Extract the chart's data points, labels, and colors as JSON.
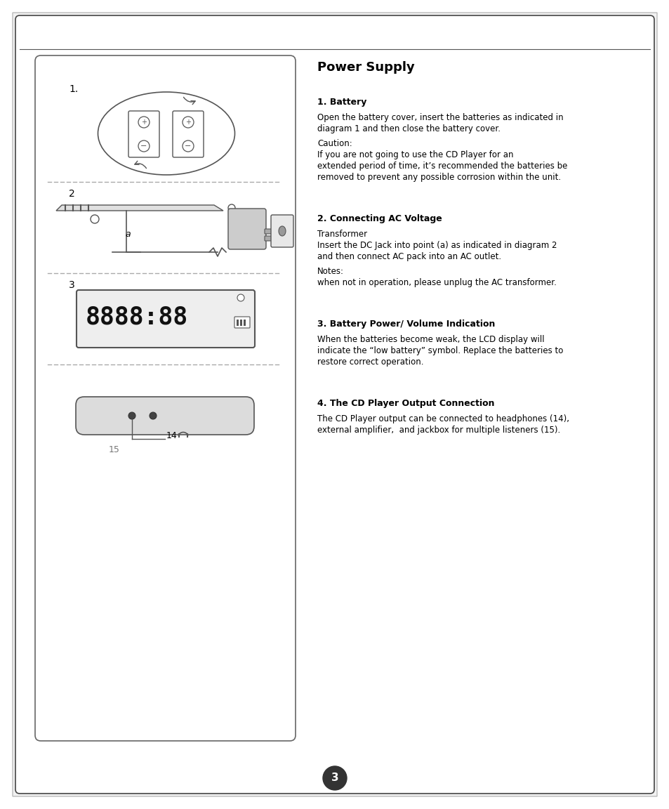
{
  "bg_color": "#ffffff",
  "title": "Power Supply",
  "sections": [
    {
      "heading": "1. Battery",
      "paragraphs": [
        "Open the battery cover, insert the batteries as indicated in\ndiagram 1 and then close the battery cover.",
        "Caution:\nIf you are not going to use the CD Player for an\nextended period of time, it’s recommended the batteries be\nremoved to prevent any possible corrosion within the unit."
      ]
    },
    {
      "heading": "2. Connecting AC Voltage",
      "paragraphs": [
        "Transformer\nInsert the DC Jack into point (a) as indicated in diagram 2\nand then connect AC pack into an AC outlet.",
        "Notes:\nwhen not in operation, please unplug the AC transformer."
      ]
    },
    {
      "heading": "3. Battery Power/ Volume Indication",
      "paragraphs": [
        "When the batteries become weak, the LCD display will\nindicate the “low battery” symbol. Replace the batteries to\nrestore correct operation."
      ]
    },
    {
      "heading": "4. The CD Player Output Connection",
      "paragraphs": [
        "The CD Player output can be connected to headphones (14),\nexternal amplifier,  and jackbox for multiple listeners (15)."
      ]
    }
  ],
  "page_number": "3",
  "dashed_line_color": "#aaaaaa",
  "text_color": "#000000",
  "heading_fontsize": 9,
  "body_fontsize": 8.5,
  "title_fontsize": 13
}
